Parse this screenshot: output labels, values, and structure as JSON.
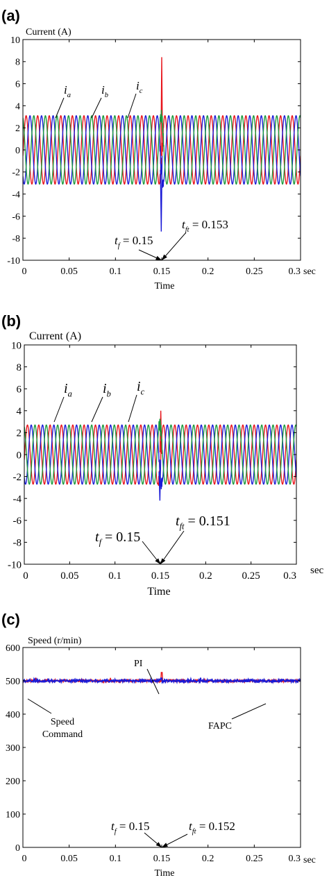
{
  "chart_data": [
    {
      "panel_label": "(a)",
      "type": "line",
      "ylabel": "Current  (A)",
      "xlabel": "Time",
      "x_unit": "sec",
      "xlim": [
        0,
        0.3
      ],
      "ylim": [
        -10,
        10
      ],
      "x_ticks": [
        "0",
        "0.05",
        "0.1",
        "0.15",
        "0.2",
        "0.25",
        "0.3"
      ],
      "y_ticks": [
        "10",
        "8",
        "6",
        "4",
        "2",
        "0",
        "-2",
        "-4",
        "-6",
        "-8",
        "-10"
      ],
      "series": [
        {
          "name": "i_a",
          "label_main": "i",
          "label_sub": "a",
          "color": "#e8141b",
          "amplitude": 3.1,
          "frequency": 80,
          "phase_deg": -10,
          "spike": {
            "t": 0.15,
            "value": 8.4
          }
        },
        {
          "name": "i_b",
          "label_main": "i",
          "label_sub": "b",
          "color": "#1b1bd6",
          "amplitude": 3.1,
          "frequency": 80,
          "phase_deg": -130,
          "spike": {
            "t": 0.1495,
            "value": -7.4
          }
        },
        {
          "name": "i_c",
          "label_main": "i",
          "label_sub": "c",
          "color": "#1a9a3c",
          "amplitude": 3.1,
          "frequency": 80,
          "phase_deg": 110,
          "spike": null
        }
      ],
      "annotations": [
        {
          "main": "t",
          "sub": "f",
          "text": " = 0.15"
        },
        {
          "main": "t",
          "sub": "ft",
          "text": " = 0.153"
        }
      ]
    },
    {
      "panel_label": "(b)",
      "type": "line",
      "ylabel": "Current  (A)",
      "xlabel": "Time",
      "x_unit": "sec",
      "xlim": [
        0,
        0.3
      ],
      "ylim": [
        -10,
        10
      ],
      "x_ticks": [
        "0",
        "0.05",
        "0.1",
        "0.15",
        "0.2",
        "0.25",
        "0.3"
      ],
      "y_ticks": [
        "10",
        "8",
        "6",
        "4",
        "2",
        "0",
        "-2",
        "-4",
        "-6",
        "-8",
        "-10"
      ],
      "series": [
        {
          "name": "i_a",
          "label_main": "i",
          "label_sub": "a",
          "color": "#e8141b",
          "amplitude": 2.7,
          "frequency": 80,
          "phase_deg": -10,
          "spike": {
            "t": 0.1505,
            "value": 4.0
          }
        },
        {
          "name": "i_b",
          "label_main": "i",
          "label_sub": "b",
          "color": "#1b1bd6",
          "amplitude": 2.7,
          "frequency": 80,
          "phase_deg": -130,
          "spike": {
            "t": 0.1495,
            "value": -4.2
          }
        },
        {
          "name": "i_c",
          "label_main": "i",
          "label_sub": "c",
          "color": "#1a9a3c",
          "amplitude": 2.7,
          "frequency": 80,
          "phase_deg": 110,
          "spike": null
        }
      ],
      "annotations": [
        {
          "main": "t",
          "sub": "f",
          "text": " = 0.15"
        },
        {
          "main": "t",
          "sub": "ft",
          "text": " = 0.151"
        }
      ]
    },
    {
      "panel_label": "(c)",
      "type": "line",
      "ylabel": "Speed (r/min)",
      "xlabel": "Time",
      "x_unit": "sec",
      "xlim": [
        0,
        0.3
      ],
      "ylim": [
        0,
        600
      ],
      "x_ticks": [
        "0",
        "0.05",
        "0.1",
        "0.15",
        "0.2",
        "0.25",
        "0.3"
      ],
      "y_ticks": [
        "600",
        "500",
        "400",
        "300",
        "200",
        "100",
        "0"
      ],
      "series": [
        {
          "name": "Speed Command",
          "color": "#000000",
          "value": 500
        },
        {
          "name": "PI",
          "color": "#e8141b",
          "value": 500,
          "noise": 4,
          "spike": {
            "t": 0.15,
            "value": 525
          }
        },
        {
          "name": "FAPC",
          "color": "#1b1bd6",
          "value": 500,
          "noise": 4,
          "spike": {
            "t": 0.1495,
            "value": 508
          }
        }
      ],
      "callouts": [
        "PI",
        "Speed",
        "Command",
        "FAPC"
      ],
      "annotations": [
        {
          "main": "t",
          "sub": "f",
          "text": " = 0.15"
        },
        {
          "main": "t",
          "sub": "ft",
          "text": " = 0.152"
        }
      ]
    }
  ]
}
